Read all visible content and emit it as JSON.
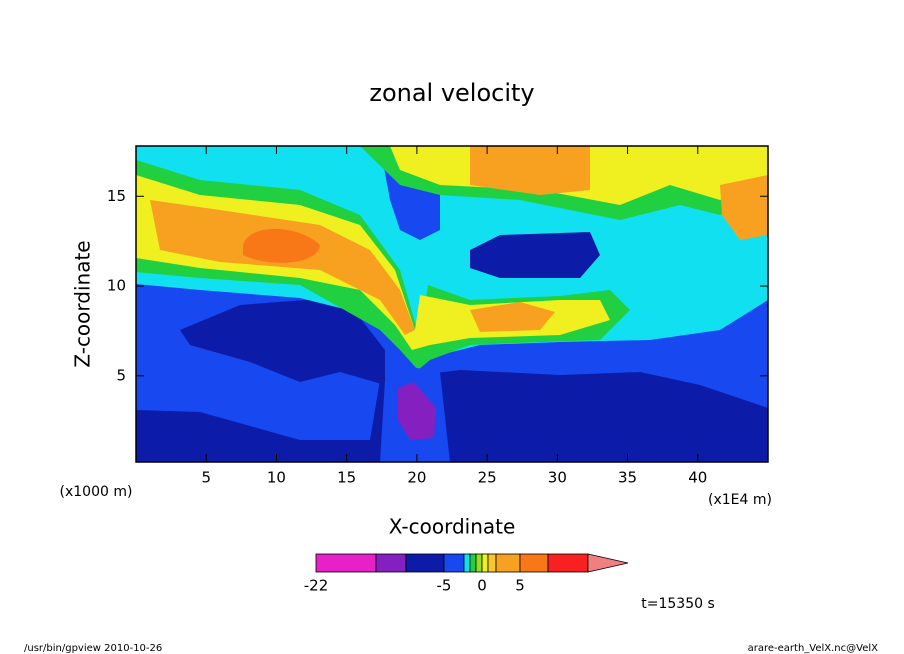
{
  "chart_data": {
    "type": "contour",
    "title": "zonal velocity",
    "x_label": "X-coordinate",
    "y_label": "Z-coordinate",
    "x_unit_label": "(x1E4 m)",
    "y_unit_label": "(x1000 m)",
    "xlim": [
      0,
      45
    ],
    "xticks": [
      5,
      10,
      15,
      20,
      25,
      30,
      35,
      40
    ],
    "ylim": [
      0.2,
      17.8
    ],
    "yticks": [
      5,
      10,
      15
    ],
    "colorbar": {
      "levels": [
        -22,
        -15,
        -10,
        -5,
        -3,
        -2,
        -1,
        0,
        1,
        2,
        5,
        10,
        15
      ],
      "colors": [
        "#e820c8",
        "#8420c0",
        "#0c1ca8",
        "#1848f0",
        "#10e0f0",
        "#20d040",
        "#90e020",
        "#f0f020",
        "#f8c828",
        "#f8a020",
        "#f87818",
        "#f82020"
      ],
      "over_color": "#f08080",
      "ticks": [
        -22,
        -5,
        0,
        5
      ]
    },
    "time_label": "t=15350 s",
    "footer_left": "/usr/bin/gpview  2010-10-26",
    "footer_right": "arare-earth_VelX.nc@VelX"
  }
}
